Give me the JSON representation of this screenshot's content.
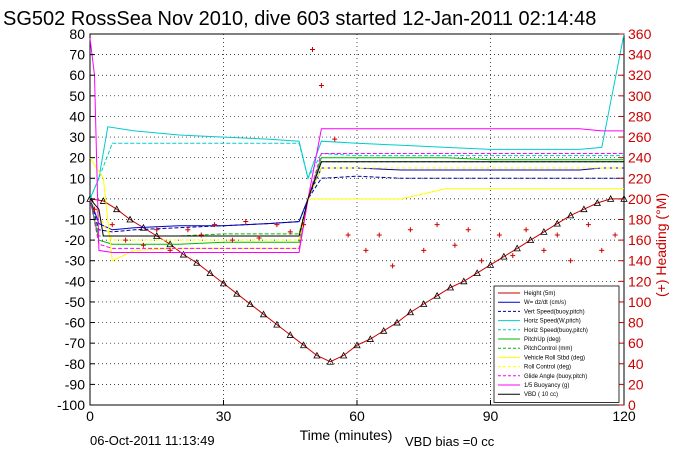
{
  "chart_data": {
    "type": "line",
    "title": "SG502 RossSea Nov 2010, dive 603 started 12-Jan-2011 02:14:48",
    "xlabel": "Time (minutes)",
    "ylabel_left": "",
    "ylabel_right": "(+) Heading (°M)",
    "xlim": [
      0,
      120
    ],
    "ylim_left": [
      -100,
      80
    ],
    "ylim_right": [
      0,
      360
    ],
    "grid": true,
    "legend_position": "bottom-right",
    "x_ticks": [
      0,
      30,
      60,
      90,
      120
    ],
    "y_ticks_left": [
      80,
      70,
      60,
      50,
      40,
      30,
      20,
      10,
      0,
      -10,
      -20,
      -30,
      -40,
      -50,
      -60,
      -70,
      -80,
      -90,
      -100
    ],
    "y_ticks_right": [
      360,
      340,
      320,
      300,
      280,
      260,
      240,
      220,
      200,
      180,
      160,
      140,
      120,
      100,
      80,
      60,
      40,
      20,
      0
    ],
    "series": [
      {
        "name": "Height (5m)",
        "color": "#cc0000",
        "style": "solid",
        "marker": "triangle",
        "x": [
          0,
          3,
          6,
          9,
          12,
          15,
          18,
          21,
          24,
          27,
          30,
          33,
          36,
          39,
          42,
          45,
          48,
          51,
          54,
          57,
          60,
          63,
          66,
          69,
          72,
          75,
          78,
          81,
          84,
          87,
          90,
          93,
          96,
          99,
          102,
          105,
          108,
          111,
          114,
          117,
          120
        ],
        "y": [
          0,
          -1,
          -5,
          -10,
          -14,
          -18,
          -22,
          -27,
          -31,
          -36,
          -41,
          -46,
          -51,
          -56,
          -61,
          -66,
          -71,
          -76,
          -79,
          -76,
          -71,
          -68,
          -64,
          -60,
          -55,
          -51,
          -47,
          -43,
          -40,
          -36,
          -32,
          -28,
          -24,
          -20,
          -16,
          -12,
          -8,
          -5,
          -2,
          0,
          0
        ]
      },
      {
        "name": "W= dz/dt (cm/s)",
        "color": "#0000cc",
        "style": "solid",
        "x": [
          0,
          2,
          5,
          10,
          20,
          30,
          40,
          47,
          49,
          52,
          60,
          70,
          80,
          90,
          100,
          110,
          115,
          120
        ],
        "y": [
          0,
          -12,
          -15,
          -14,
          -13,
          -13,
          -12,
          -11,
          0,
          15,
          15,
          14,
          14,
          14,
          14,
          14,
          15,
          15
        ]
      },
      {
        "name": "Vert Speed(buoy,pitch)",
        "color": "#000099",
        "style": "dashed",
        "x": [
          0,
          2,
          5,
          10,
          20,
          30,
          40,
          47,
          49,
          52,
          60,
          70,
          80,
          90,
          100,
          110,
          115,
          120
        ],
        "y": [
          0,
          -15,
          -16,
          -15,
          -14,
          -13,
          -12,
          -11,
          0,
          10,
          11,
          10,
          10,
          10,
          10,
          10,
          10,
          10
        ]
      },
      {
        "name": "Horiz Speed(W,pitch)",
        "color": "#00cccc",
        "style": "solid",
        "x": [
          0,
          2,
          4,
          10,
          20,
          30,
          40,
          47,
          49,
          52,
          60,
          70,
          80,
          90,
          100,
          110,
          115,
          120
        ],
        "y": [
          0,
          10,
          35,
          33,
          31,
          30,
          29,
          28,
          10,
          28,
          27,
          26,
          25,
          24,
          24,
          24,
          25,
          80
        ]
      },
      {
        "name": "Horiz Speed(buoy,pitch)",
        "color": "#00cccc",
        "style": "dashed",
        "x": [
          0,
          2,
          5,
          10,
          20,
          30,
          40,
          47,
          49,
          52,
          60,
          70,
          80,
          90,
          100,
          110,
          115,
          120
        ],
        "y": [
          0,
          10,
          27,
          27,
          27,
          27,
          27,
          27,
          10,
          22,
          21,
          21,
          21,
          21,
          21,
          21,
          21,
          21
        ]
      },
      {
        "name": "PitchUp (deg)",
        "color": "#00bb00",
        "style": "solid",
        "x": [
          0,
          2,
          5,
          10,
          20,
          30,
          40,
          47,
          49,
          52,
          60,
          70,
          80,
          90,
          100,
          110,
          115,
          120
        ],
        "y": [
          0,
          -20,
          -22,
          -22,
          -22,
          -21,
          -21,
          -21,
          0,
          20,
          20,
          20,
          20,
          19,
          19,
          19,
          19,
          19
        ]
      },
      {
        "name": "PitchControl (mm)",
        "color": "#00bb00",
        "style": "dashed",
        "x": [
          0,
          2,
          5,
          10,
          20,
          30,
          40,
          47,
          49,
          52,
          60,
          70,
          80,
          90,
          100,
          110,
          115,
          120
        ],
        "y": [
          0,
          -18,
          -18,
          -18,
          -18,
          -17,
          -17,
          -17,
          0,
          18,
          18,
          18,
          18,
          18,
          18,
          18,
          18,
          18
        ]
      },
      {
        "name": "Vehicle Roll Stbd (deg)",
        "color": "#ffff00",
        "style": "solid",
        "x": [
          0,
          3,
          5,
          10,
          20,
          30,
          40,
          47,
          49,
          52,
          60,
          70,
          80,
          90,
          100,
          110,
          115,
          120
        ],
        "y": [
          20,
          10,
          -30,
          -25,
          -24,
          -24,
          -24,
          -24,
          0,
          0,
          0,
          0,
          5,
          5,
          5,
          5,
          5,
          5
        ]
      },
      {
        "name": "Roll Control (deg)",
        "color": "#ffff00",
        "style": "dashed",
        "x": [
          0,
          5,
          10,
          20,
          30,
          40,
          47,
          49,
          52,
          60,
          70,
          80,
          90,
          100,
          110,
          120
        ],
        "y": [
          0,
          -20,
          -20,
          -20,
          -20,
          -20,
          -20,
          0,
          15,
          15,
          15,
          15,
          15,
          15,
          15,
          15
        ]
      },
      {
        "name": "Glide Angle (buoy,pitch)",
        "color": "#ff00ff",
        "style": "dashed",
        "x": [
          0,
          2,
          5,
          10,
          20,
          30,
          40,
          47,
          49,
          52,
          60,
          70,
          80,
          90,
          100,
          110,
          115,
          120
        ],
        "y": [
          0,
          -22,
          -24,
          -24,
          -24,
          -24,
          -24,
          -24,
          0,
          22,
          22,
          22,
          22,
          22,
          22,
          22,
          22,
          22
        ]
      },
      {
        "name": "1/5 Buoyancy (g)",
        "color": "#ff00ff",
        "style": "solid",
        "x": [
          0,
          1,
          2,
          5,
          10,
          20,
          30,
          40,
          47,
          49,
          52,
          60,
          70,
          80,
          90,
          100,
          110,
          115,
          120
        ],
        "y": [
          78,
          60,
          -25,
          -26,
          -26,
          -26,
          -26,
          -26,
          -26,
          0,
          34,
          34,
          34,
          34,
          34,
          34,
          34,
          33,
          33
        ]
      },
      {
        "name": "VBD ( 10 cc)",
        "color": "#000000",
        "style": "solid",
        "x": [
          0,
          2,
          3,
          10,
          20,
          30,
          40,
          47,
          49,
          52,
          60,
          70,
          80,
          90,
          100,
          110,
          115,
          120
        ],
        "y": [
          0,
          -5,
          -18,
          -18,
          -18,
          -18,
          -18,
          -18,
          0,
          18,
          18,
          18,
          18,
          18,
          18,
          18,
          18,
          18
        ]
      },
      {
        "name": "Heading",
        "axis": "right",
        "color": "#cc0000",
        "style": "markers",
        "marker": "+",
        "x": [
          1,
          5,
          8,
          12,
          15,
          18,
          22,
          25,
          28,
          32,
          35,
          38,
          42,
          45,
          48,
          50,
          52,
          55,
          58,
          62,
          65,
          68,
          72,
          75,
          78,
          82,
          85,
          88,
          92,
          95,
          98,
          102,
          105,
          108,
          112,
          115,
          118
        ],
        "y": [
          190,
          175,
          160,
          155,
          170,
          150,
          170,
          165,
          175,
          160,
          178,
          162,
          175,
          168,
          175,
          345,
          310,
          258,
          165,
          150,
          165,
          135,
          170,
          150,
          175,
          155,
          170,
          140,
          165,
          145,
          170,
          150,
          165,
          140,
          175,
          150,
          165
        ]
      }
    ]
  },
  "footer": {
    "timestamp": "06-Oct-2011 11:13:49",
    "vbd_bias": "VBD bias =0 cc"
  }
}
